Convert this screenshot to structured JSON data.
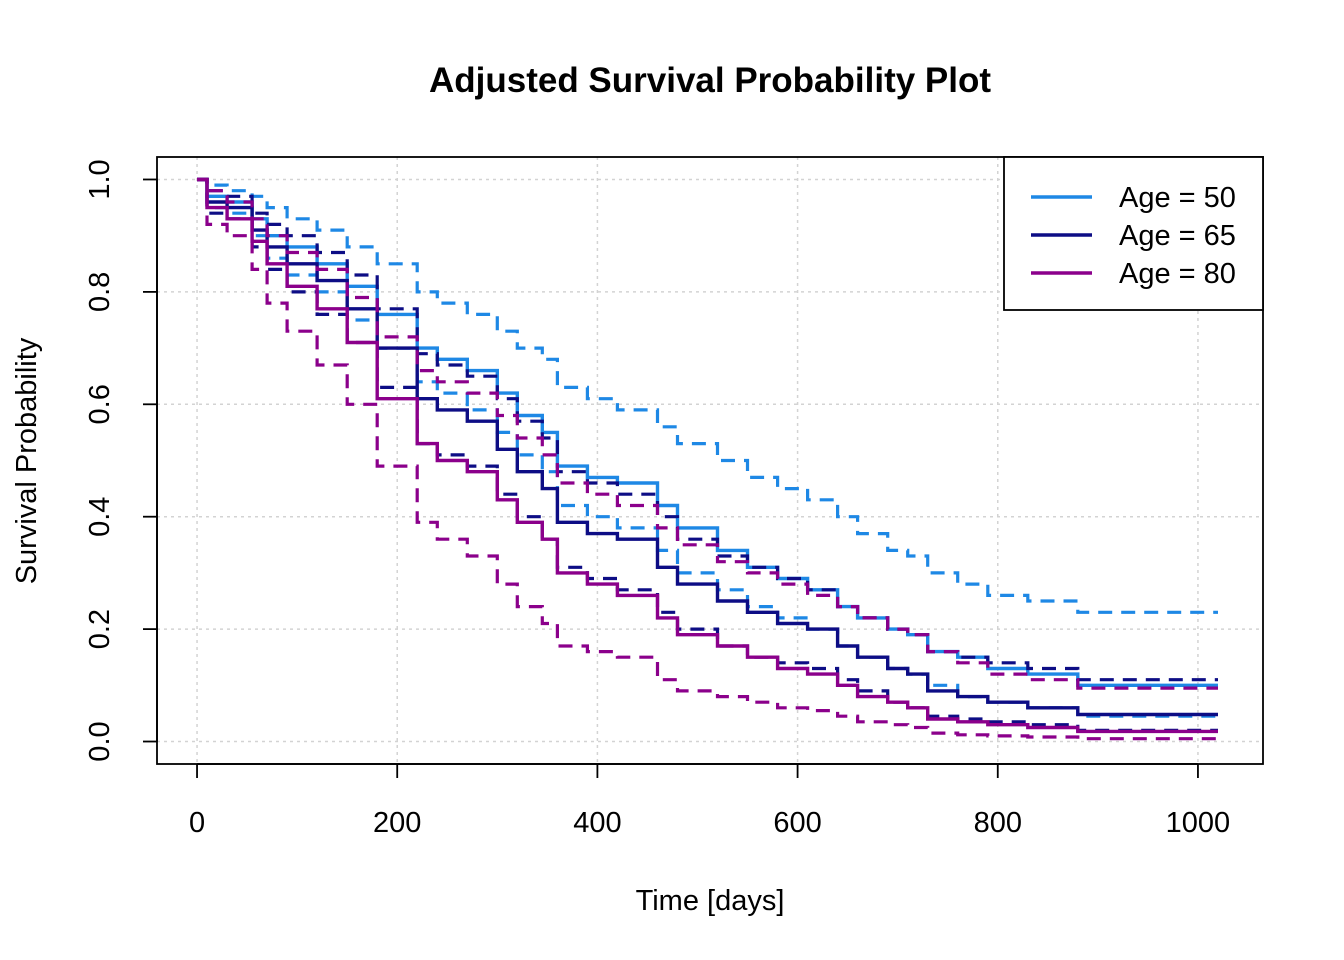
{
  "chart_data": {
    "type": "line",
    "title": "Adjusted Survival Probability Plot",
    "xlabel": "Time [days]",
    "ylabel": "Survival Probability",
    "xlim": [
      -40,
      1065
    ],
    "ylim": [
      -0.04,
      1.04
    ],
    "xticks": [
      0,
      200,
      400,
      600,
      800,
      1000
    ],
    "yticks": [
      0.0,
      0.2,
      0.4,
      0.6,
      0.8,
      1.0
    ],
    "xtick_labels": [
      "0",
      "200",
      "400",
      "600",
      "800",
      "1000"
    ],
    "ytick_labels": [
      "0.0",
      "0.2",
      "0.4",
      "0.6",
      "0.8",
      "1.0"
    ],
    "grid": true,
    "legend_position": "top-right",
    "step": true,
    "series": [
      {
        "name": "Age = 50",
        "color": "#1e88e5",
        "x": [
          0,
          10,
          30,
          55,
          70,
          90,
          120,
          150,
          180,
          220,
          240,
          270,
          300,
          320,
          345,
          360,
          390,
          420,
          460,
          480,
          520,
          550,
          580,
          610,
          640,
          660,
          690,
          710,
          730,
          760,
          790,
          830,
          880,
          1020
        ],
        "values": [
          1.0,
          0.97,
          0.96,
          0.93,
          0.9,
          0.88,
          0.85,
          0.81,
          0.76,
          0.7,
          0.68,
          0.66,
          0.62,
          0.58,
          0.55,
          0.49,
          0.47,
          0.46,
          0.42,
          0.38,
          0.34,
          0.31,
          0.29,
          0.27,
          0.24,
          0.22,
          0.2,
          0.19,
          0.16,
          0.15,
          0.13,
          0.12,
          0.1,
          0.1
        ],
        "upper": [
          1.0,
          0.99,
          0.98,
          0.97,
          0.95,
          0.93,
          0.91,
          0.88,
          0.85,
          0.8,
          0.78,
          0.76,
          0.73,
          0.7,
          0.68,
          0.63,
          0.61,
          0.59,
          0.56,
          0.53,
          0.5,
          0.47,
          0.45,
          0.43,
          0.4,
          0.37,
          0.34,
          0.33,
          0.3,
          0.28,
          0.26,
          0.25,
          0.23,
          0.23
        ],
        "lower": [
          1.0,
          0.95,
          0.94,
          0.9,
          0.86,
          0.83,
          0.8,
          0.75,
          0.7,
          0.64,
          0.62,
          0.59,
          0.55,
          0.51,
          0.48,
          0.42,
          0.4,
          0.38,
          0.34,
          0.3,
          0.27,
          0.24,
          0.22,
          0.2,
          0.17,
          0.15,
          0.13,
          0.12,
          0.1,
          0.08,
          0.07,
          0.06,
          0.045,
          0.045
        ]
      },
      {
        "name": "Age = 65",
        "color": "#0d0d85",
        "x": [
          0,
          10,
          30,
          55,
          70,
          90,
          120,
          150,
          180,
          220,
          240,
          270,
          300,
          320,
          345,
          360,
          390,
          420,
          460,
          480,
          520,
          550,
          580,
          610,
          640,
          660,
          690,
          710,
          730,
          760,
          790,
          830,
          880,
          1020
        ],
        "values": [
          1.0,
          0.96,
          0.95,
          0.91,
          0.88,
          0.85,
          0.82,
          0.77,
          0.7,
          0.61,
          0.59,
          0.57,
          0.52,
          0.48,
          0.45,
          0.39,
          0.37,
          0.36,
          0.31,
          0.28,
          0.25,
          0.23,
          0.21,
          0.2,
          0.17,
          0.15,
          0.13,
          0.12,
          0.09,
          0.08,
          0.07,
          0.06,
          0.048,
          0.048
        ],
        "upper": [
          1.0,
          0.98,
          0.97,
          0.94,
          0.92,
          0.9,
          0.87,
          0.83,
          0.77,
          0.69,
          0.67,
          0.65,
          0.61,
          0.57,
          0.54,
          0.48,
          0.46,
          0.44,
          0.4,
          0.36,
          0.33,
          0.31,
          0.29,
          0.27,
          0.24,
          0.22,
          0.2,
          0.19,
          0.16,
          0.15,
          0.14,
          0.13,
          0.11,
          0.11
        ],
        "lower": [
          1.0,
          0.94,
          0.93,
          0.88,
          0.84,
          0.8,
          0.76,
          0.71,
          0.63,
          0.53,
          0.51,
          0.49,
          0.44,
          0.4,
          0.36,
          0.31,
          0.29,
          0.27,
          0.23,
          0.2,
          0.17,
          0.15,
          0.14,
          0.13,
          0.11,
          0.09,
          0.07,
          0.06,
          0.045,
          0.04,
          0.035,
          0.03,
          0.02,
          0.02
        ]
      },
      {
        "name": "Age = 80",
        "color": "#8b008b",
        "x": [
          0,
          10,
          30,
          55,
          70,
          90,
          120,
          150,
          180,
          220,
          240,
          270,
          300,
          320,
          345,
          360,
          390,
          420,
          460,
          480,
          520,
          550,
          580,
          610,
          640,
          660,
          690,
          710,
          730,
          760,
          790,
          830,
          880,
          1020
        ],
        "values": [
          1.0,
          0.95,
          0.93,
          0.89,
          0.85,
          0.81,
          0.77,
          0.71,
          0.61,
          0.53,
          0.5,
          0.48,
          0.43,
          0.39,
          0.36,
          0.3,
          0.28,
          0.26,
          0.22,
          0.19,
          0.17,
          0.15,
          0.13,
          0.12,
          0.1,
          0.08,
          0.07,
          0.06,
          0.04,
          0.035,
          0.03,
          0.025,
          0.018,
          0.018
        ],
        "upper": [
          1.0,
          0.98,
          0.96,
          0.93,
          0.9,
          0.87,
          0.84,
          0.79,
          0.72,
          0.66,
          0.64,
          0.62,
          0.58,
          0.54,
          0.51,
          0.46,
          0.44,
          0.42,
          0.38,
          0.35,
          0.32,
          0.3,
          0.28,
          0.26,
          0.24,
          0.22,
          0.2,
          0.19,
          0.16,
          0.14,
          0.12,
          0.11,
          0.095,
          0.095
        ],
        "lower": [
          1.0,
          0.92,
          0.9,
          0.84,
          0.78,
          0.73,
          0.67,
          0.6,
          0.49,
          0.39,
          0.36,
          0.33,
          0.28,
          0.24,
          0.21,
          0.17,
          0.16,
          0.15,
          0.11,
          0.09,
          0.08,
          0.07,
          0.06,
          0.055,
          0.045,
          0.035,
          0.03,
          0.025,
          0.015,
          0.012,
          0.01,
          0.008,
          0.005,
          0.005
        ]
      }
    ]
  }
}
